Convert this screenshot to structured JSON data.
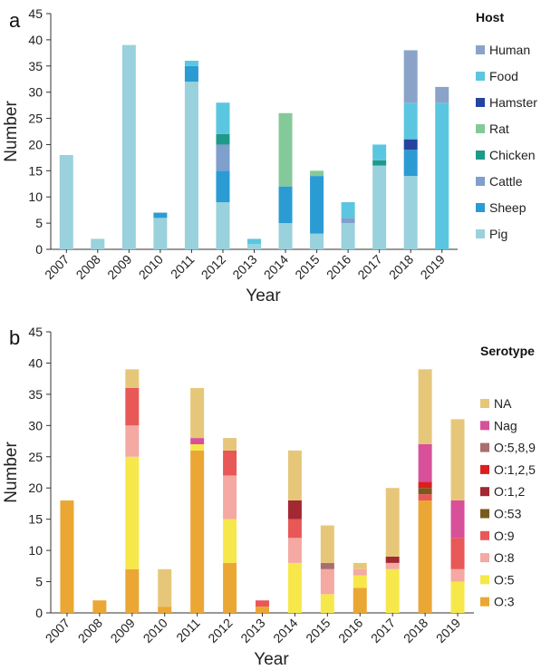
{
  "chart_data": [
    {
      "type": "bar",
      "stacked": true,
      "panel_label": "a",
      "title": "",
      "xlabel": "Year",
      "ylabel": "Number",
      "ylim": [
        0,
        45
      ],
      "yticks": [
        0,
        5,
        10,
        15,
        20,
        25,
        30,
        35,
        40,
        45
      ],
      "grid": false,
      "legend_title": "Host",
      "legend_position": "right",
      "categories": [
        "2007",
        "2008",
        "2009",
        "2010",
        "2011",
        "2012",
        "2013",
        "2014",
        "2015",
        "2016",
        "2017",
        "2018",
        "2019"
      ],
      "legend_order": [
        "Human",
        "Food",
        "Hamster",
        "Rat",
        "Chicken",
        "Cattle",
        "Sheep",
        "Pig"
      ],
      "series": [
        {
          "name": "Pig",
          "color": "#99d1dc",
          "values": [
            18,
            2,
            39,
            6,
            32,
            9,
            1,
            5,
            3,
            5,
            16,
            14,
            0
          ]
        },
        {
          "name": "Sheep",
          "color": "#2b9bd3",
          "values": [
            0,
            0,
            0,
            1,
            3,
            6,
            0,
            7,
            11,
            0,
            0,
            5,
            0
          ]
        },
        {
          "name": "Cattle",
          "color": "#7f9fcc",
          "values": [
            0,
            0,
            0,
            0,
            0,
            5,
            0,
            0,
            0,
            1,
            0,
            0,
            0
          ]
        },
        {
          "name": "Chicken",
          "color": "#1f9a8a",
          "values": [
            0,
            0,
            0,
            0,
            0,
            2,
            0,
            0,
            0,
            0,
            1,
            0,
            0
          ]
        },
        {
          "name": "Rat",
          "color": "#84c99a",
          "values": [
            0,
            0,
            0,
            0,
            0,
            0,
            0,
            14,
            1,
            0,
            0,
            0,
            0
          ]
        },
        {
          "name": "Hamster",
          "color": "#26449e",
          "values": [
            0,
            0,
            0,
            0,
            0,
            0,
            0,
            0,
            0,
            0,
            0,
            2,
            0
          ]
        },
        {
          "name": "Food",
          "color": "#5bc6e0",
          "values": [
            0,
            0,
            0,
            0,
            1,
            6,
            1,
            0,
            0,
            3,
            3,
            7,
            28
          ]
        },
        {
          "name": "Human",
          "color": "#8ba3c8",
          "values": [
            0,
            0,
            0,
            0,
            0,
            0,
            0,
            0,
            0,
            0,
            0,
            10,
            3
          ]
        }
      ]
    },
    {
      "type": "bar",
      "stacked": true,
      "panel_label": "b",
      "title": "",
      "xlabel": "Year",
      "ylabel": "Number",
      "ylim": [
        0,
        45
      ],
      "yticks": [
        0,
        5,
        10,
        15,
        20,
        25,
        30,
        35,
        40,
        45
      ],
      "grid": false,
      "legend_title": "Serotype",
      "legend_position": "right",
      "categories": [
        "2007",
        "2008",
        "2009",
        "2010",
        "2011",
        "2012",
        "2013",
        "2014",
        "2015",
        "2016",
        "2017",
        "2018",
        "2019"
      ],
      "legend_order": [
        "NA",
        "Nag",
        "O:5,8,9",
        "O:1,2,5",
        "O:1,2",
        "O:53",
        "O:9",
        "O:8",
        "O:5",
        "O:3"
      ],
      "series": [
        {
          "name": "O:3",
          "color": "#eba734",
          "values": [
            18,
            2,
            7,
            1,
            26,
            8,
            1,
            0,
            0,
            4,
            0,
            18,
            0
          ]
        },
        {
          "name": "O:5",
          "color": "#f6e84a",
          "values": [
            0,
            0,
            18,
            0,
            1,
            7,
            0,
            8,
            3,
            2,
            7,
            0,
            5
          ]
        },
        {
          "name": "O:8",
          "color": "#f4a9a3",
          "values": [
            0,
            0,
            5,
            0,
            0,
            7,
            0,
            4,
            4,
            1,
            1,
            0,
            2
          ]
        },
        {
          "name": "O:9",
          "color": "#e85857",
          "values": [
            0,
            0,
            6,
            0,
            0,
            4,
            1,
            3,
            0,
            0,
            0,
            1,
            5
          ]
        },
        {
          "name": "O:53",
          "color": "#7a5a1c",
          "values": [
            0,
            0,
            0,
            0,
            0,
            0,
            0,
            0,
            0,
            0,
            0,
            1,
            0
          ]
        },
        {
          "name": "O:1,2",
          "color": "#a32832",
          "values": [
            0,
            0,
            0,
            0,
            0,
            0,
            0,
            3,
            0,
            0,
            1,
            0,
            0
          ]
        },
        {
          "name": "O:1,2,5",
          "color": "#d9201f",
          "values": [
            0,
            0,
            0,
            0,
            0,
            0,
            0,
            0,
            0,
            0,
            0,
            1,
            0
          ]
        },
        {
          "name": "O:5,8,9",
          "color": "#a96e6e",
          "values": [
            0,
            0,
            0,
            0,
            0,
            0,
            0,
            0,
            1,
            0,
            0,
            0,
            0
          ]
        },
        {
          "name": "Nag",
          "color": "#d8509a",
          "values": [
            0,
            0,
            0,
            0,
            1,
            0,
            0,
            0,
            0,
            0,
            0,
            6,
            6
          ]
        },
        {
          "name": "NA",
          "color": "#e6c77a",
          "values": [
            0,
            0,
            3,
            6,
            8,
            2,
            0,
            8,
            6,
            1,
            11,
            12,
            13
          ]
        }
      ]
    }
  ]
}
